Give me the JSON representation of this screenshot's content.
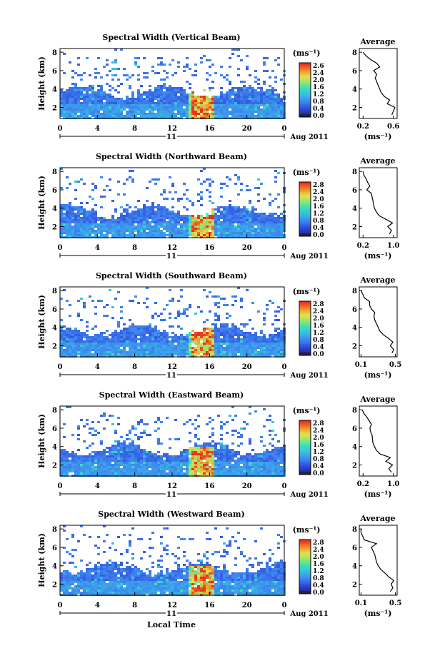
{
  "figure": {
    "x_axis_label": "Local Time",
    "date_label": "Aug 2011",
    "day_label": "11",
    "height_label": "Height (km)",
    "unit_label": "(ms⁻¹)",
    "avg_unit_label": "(ms⁻¹)",
    "avg_title": "Average",
    "x_ticks": [
      "0",
      "4",
      "8",
      "12",
      "16",
      "20",
      "0"
    ],
    "y_ticks": [
      "2",
      "4",
      "6",
      "8"
    ],
    "avg_y_ticks": [
      "2",
      "4",
      "6",
      "8"
    ]
  },
  "chart_data": [
    {
      "type": "heatmap",
      "title": "Spectral Width (Vertical Beam)",
      "xlabel": "",
      "ylabel": "Height (km)",
      "x_range_hours": [
        0,
        24
      ],
      "ylim_km": [
        0.8,
        8.4
      ],
      "colorbar": {
        "label": "(ms⁻¹)",
        "range": [
          0,
          2.8
        ],
        "ticks": [
          "2.6",
          "2.4",
          "2.0",
          "1.6",
          "1.2",
          "0.8",
          "0.4",
          "0.0"
        ]
      },
      "profile": {
        "title": "Average",
        "xlabel": "(ms⁻¹)",
        "x_ticks": [
          "0.2",
          "0.6"
        ],
        "xlim": [
          0.15,
          0.65
        ],
        "height_km": [
          1.2,
          1.6,
          2.0,
          2.4,
          2.8,
          3.2,
          3.6,
          4.0,
          4.4,
          4.8,
          5.2,
          5.6,
          6.0,
          6.4,
          6.8,
          7.2,
          7.6,
          8.0
        ],
        "width_ms": [
          0.58,
          0.6,
          0.62,
          0.52,
          0.55,
          0.48,
          0.44,
          0.42,
          0.4,
          0.38,
          0.36,
          0.38,
          0.34,
          0.42,
          0.38,
          0.3,
          0.24,
          0.2
        ]
      }
    },
    {
      "type": "heatmap",
      "title": "Spectral Width (Northward Beam)",
      "xlabel": "",
      "ylabel": "Height (km)",
      "x_range_hours": [
        0,
        24
      ],
      "ylim_km": [
        0.8,
        8.4
      ],
      "colorbar": {
        "label": "(ms⁻¹)",
        "range": [
          0,
          2.8
        ],
        "ticks": [
          "2.8",
          "2.4",
          "2.0",
          "1.6",
          "1.2",
          "0.8",
          "0.4",
          "0.0"
        ]
      },
      "profile": {
        "title": "Average",
        "xlabel": "(ms⁻¹)",
        "x_ticks": [
          "0.2",
          "1.0"
        ],
        "xlim": [
          0.1,
          1.1
        ],
        "height_km": [
          1.2,
          1.6,
          2.0,
          2.4,
          2.8,
          3.2,
          3.6,
          4.0,
          4.4,
          4.8,
          5.2,
          5.6,
          6.0,
          6.4,
          6.8,
          7.2,
          7.6,
          8.0
        ],
        "width_ms": [
          0.9,
          0.95,
          0.85,
          0.98,
          0.8,
          0.62,
          0.55,
          0.5,
          0.48,
          0.46,
          0.44,
          0.42,
          0.3,
          0.38,
          0.32,
          0.28,
          0.22,
          0.2
        ]
      }
    },
    {
      "type": "heatmap",
      "title": "Spectral Width (Southward Beam)",
      "xlabel": "",
      "ylabel": "Height (km)",
      "x_range_hours": [
        0,
        24
      ],
      "ylim_km": [
        0.8,
        8.4
      ],
      "colorbar": {
        "label": "(ms⁻¹)",
        "range": [
          0,
          2.8
        ],
        "ticks": [
          "2.8",
          "2.4",
          "2.0",
          "1.6",
          "1.2",
          "0.8",
          "0.4",
          "0.0"
        ]
      },
      "profile": {
        "title": "Average",
        "xlabel": "(ms⁻¹)",
        "x_ticks": [
          "0.1",
          "0.5"
        ],
        "xlim": [
          0.08,
          0.52
        ],
        "height_km": [
          1.2,
          1.6,
          2.0,
          2.4,
          2.8,
          3.2,
          3.6,
          4.0,
          4.4,
          4.8,
          5.2,
          5.6,
          6.0,
          6.4,
          6.8,
          7.2,
          7.6,
          8.0
        ],
        "width_ms": [
          0.46,
          0.48,
          0.44,
          0.47,
          0.42,
          0.36,
          0.32,
          0.3,
          0.28,
          0.26,
          0.25,
          0.26,
          0.22,
          0.2,
          0.2,
          0.14,
          0.12,
          0.1
        ]
      }
    },
    {
      "type": "heatmap",
      "title": "Spectral Width (Eastward Beam)",
      "xlabel": "",
      "ylabel": "Height (km)",
      "x_range_hours": [
        0,
        24
      ],
      "ylim_km": [
        0.8,
        8.4
      ],
      "colorbar": {
        "label": "(ms⁻¹)",
        "range": [
          0,
          2.8
        ],
        "ticks": [
          "2.8",
          "2.4",
          "2.0",
          "1.6",
          "1.2",
          "0.8",
          "0.4",
          "0.0"
        ]
      },
      "profile": {
        "title": "Average",
        "xlabel": "(ms⁻¹)",
        "x_ticks": [
          "0.2",
          "1.0"
        ],
        "xlim": [
          0.1,
          1.1
        ],
        "height_km": [
          1.2,
          1.6,
          2.0,
          2.4,
          2.8,
          3.2,
          3.6,
          4.0,
          4.4,
          4.8,
          5.2,
          5.6,
          6.0,
          6.4,
          6.8,
          7.2,
          7.6,
          8.0
        ],
        "width_ms": [
          0.95,
          0.88,
          0.98,
          0.8,
          0.92,
          0.65,
          0.55,
          0.5,
          0.46,
          0.45,
          0.44,
          0.4,
          0.38,
          0.42,
          0.36,
          0.3,
          0.22,
          0.18
        ]
      }
    },
    {
      "type": "heatmap",
      "title": "Spectral Width (Westward Beam)",
      "xlabel": "Local Time",
      "ylabel": "Height (km)",
      "x_range_hours": [
        0,
        24
      ],
      "ylim_km": [
        0.8,
        8.4
      ],
      "colorbar": {
        "label": "(ms⁻¹)",
        "range": [
          0,
          2.8
        ],
        "ticks": [
          "2.8",
          "2.4",
          "2.0",
          "1.6",
          "1.2",
          "0.8",
          "0.4",
          "0.0"
        ]
      },
      "profile": {
        "title": "Average",
        "xlabel": "(ms⁻¹)",
        "x_ticks": [
          "0.1",
          "0.5"
        ],
        "xlim": [
          0.08,
          0.52
        ],
        "height_km": [
          1.2,
          1.6,
          2.0,
          2.4,
          2.8,
          3.2,
          3.6,
          4.0,
          4.4,
          4.8,
          5.2,
          5.6,
          6.0,
          6.4,
          6.8,
          7.2,
          7.6,
          8.0
        ],
        "width_ms": [
          0.44,
          0.47,
          0.45,
          0.48,
          0.42,
          0.38,
          0.33,
          0.3,
          0.28,
          0.27,
          0.26,
          0.24,
          0.22,
          0.28,
          0.14,
          0.12,
          0.1,
          0.1
        ]
      }
    }
  ]
}
